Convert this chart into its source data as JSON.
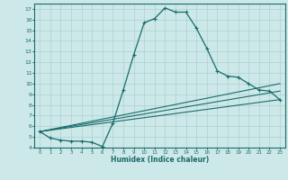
{
  "xlabel": "Humidex (Indice chaleur)",
  "bg_color": "#cce8e8",
  "grid_color": "#aed0d0",
  "line_color": "#1a6b6b",
  "xlim": [
    -0.5,
    23.5
  ],
  "ylim": [
    4,
    17.5
  ],
  "xticks": [
    0,
    1,
    2,
    3,
    4,
    5,
    6,
    7,
    8,
    9,
    10,
    11,
    12,
    13,
    14,
    15,
    16,
    17,
    18,
    19,
    20,
    21,
    22,
    23
  ],
  "yticks": [
    4,
    5,
    6,
    7,
    8,
    9,
    10,
    11,
    12,
    13,
    14,
    15,
    16,
    17
  ],
  "series1_x": [
    0,
    1,
    2,
    3,
    4,
    5,
    6,
    7,
    8,
    9,
    10,
    11,
    12,
    13,
    14,
    15,
    16,
    17,
    18,
    19,
    20,
    21,
    22,
    23
  ],
  "series1_y": [
    5.5,
    4.9,
    4.7,
    4.6,
    4.6,
    4.5,
    4.1,
    6.3,
    9.4,
    12.7,
    15.7,
    16.1,
    17.1,
    16.7,
    16.7,
    15.2,
    13.3,
    11.2,
    10.7,
    10.6,
    10.0,
    9.4,
    9.3,
    8.5
  ],
  "series2_x": [
    0,
    23
  ],
  "series2_y": [
    5.5,
    8.5
  ],
  "series3_x": [
    0,
    23
  ],
  "series3_y": [
    5.5,
    9.3
  ],
  "series4_x": [
    0,
    23
  ],
  "series4_y": [
    5.5,
    10.0
  ]
}
